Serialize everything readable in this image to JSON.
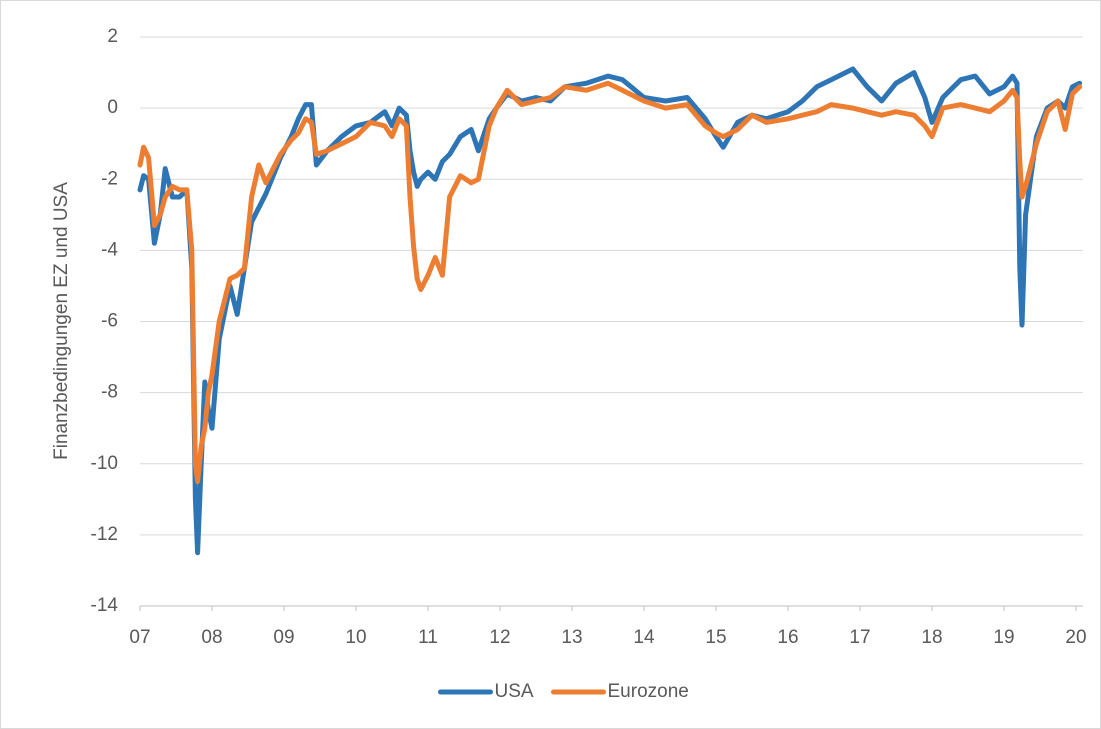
{
  "chart_data": {
    "type": "line",
    "y_label": "Finanzbedingungen  EZ und USA",
    "legend": "bottom",
    "grid": true,
    "xlim": [
      7,
      20.1
    ],
    "xticks": [
      {
        "value": 7,
        "label": "07"
      },
      {
        "value": 8,
        "label": "08"
      },
      {
        "value": 9,
        "label": "09"
      },
      10,
      11,
      12,
      13,
      14,
      15,
      16,
      17,
      18,
      19,
      20
    ],
    "ylim": [
      -14,
      2
    ],
    "yticks": [
      2,
      0,
      -2,
      -4,
      -6,
      -8,
      -10,
      -12,
      -14
    ],
    "x": [
      7.0,
      7.05,
      7.12,
      7.2,
      7.28,
      7.35,
      7.45,
      7.55,
      7.65,
      7.72,
      7.77,
      7.8,
      7.85,
      7.9,
      7.95,
      8.0,
      8.1,
      8.25,
      8.35,
      8.45,
      8.55,
      8.65,
      8.75,
      8.95,
      9.1,
      9.2,
      9.3,
      9.38,
      9.45,
      9.6,
      9.8,
      10.0,
      10.2,
      10.4,
      10.5,
      10.6,
      10.7,
      10.75,
      10.8,
      10.85,
      10.9,
      11.0,
      11.1,
      11.2,
      11.3,
      11.45,
      11.6,
      11.7,
      11.85,
      11.95,
      12.1,
      12.3,
      12.5,
      12.7,
      12.9,
      13.2,
      13.5,
      13.7,
      14.0,
      14.3,
      14.6,
      14.85,
      15.0,
      15.1,
      15.3,
      15.5,
      15.7,
      16.0,
      16.2,
      16.4,
      16.6,
      16.9,
      17.1,
      17.3,
      17.5,
      17.75,
      17.9,
      18.0,
      18.15,
      18.4,
      18.6,
      18.8,
      19.0,
      19.12,
      19.18,
      19.22,
      19.25,
      19.3,
      19.45,
      19.6,
      19.75,
      19.85,
      19.95,
      20.05
    ],
    "series": [
      {
        "name": "USA",
        "color": "#2e75b6",
        "values": [
          -2.3,
          -1.9,
          -2.0,
          -3.8,
          -3.0,
          -1.7,
          -2.5,
          -2.5,
          -2.3,
          -4.5,
          -11.0,
          -12.5,
          -10.0,
          -7.7,
          -8.5,
          -9.0,
          -6.5,
          -5.0,
          -5.8,
          -4.5,
          -3.2,
          -2.8,
          -2.4,
          -1.4,
          -0.8,
          -0.3,
          0.1,
          0.1,
          -1.6,
          -1.2,
          -0.8,
          -0.5,
          -0.4,
          -0.1,
          -0.5,
          0.0,
          -0.2,
          -1.2,
          -1.8,
          -2.2,
          -2.0,
          -1.8,
          -2.0,
          -1.5,
          -1.3,
          -0.8,
          -0.6,
          -1.2,
          -0.3,
          0.0,
          0.4,
          0.2,
          0.3,
          0.2,
          0.6,
          0.7,
          0.9,
          0.8,
          0.3,
          0.2,
          0.3,
          -0.3,
          -0.8,
          -1.1,
          -0.4,
          -0.2,
          -0.3,
          -0.1,
          0.2,
          0.6,
          0.8,
          1.1,
          0.6,
          0.2,
          0.7,
          1.0,
          0.3,
          -0.4,
          0.3,
          0.8,
          0.9,
          0.4,
          0.6,
          0.9,
          0.7,
          -4.5,
          -6.1,
          -3.0,
          -0.8,
          0.0,
          0.2,
          0.0,
          0.6,
          0.7
        ]
      },
      {
        "name": "Eurozone",
        "color": "#ed7d31",
        "values": [
          -1.6,
          -1.1,
          -1.4,
          -3.3,
          -3.0,
          -2.5,
          -2.2,
          -2.3,
          -2.3,
          -4.0,
          -10.0,
          -10.5,
          -9.5,
          -9.0,
          -8.0,
          -7.5,
          -6.0,
          -4.8,
          -4.7,
          -4.5,
          -2.5,
          -1.6,
          -2.1,
          -1.3,
          -0.9,
          -0.7,
          -0.3,
          -0.4,
          -1.3,
          -1.2,
          -1.0,
          -0.8,
          -0.4,
          -0.5,
          -0.8,
          -0.3,
          -0.5,
          -2.5,
          -3.9,
          -4.8,
          -5.1,
          -4.7,
          -4.2,
          -4.7,
          -2.5,
          -1.9,
          -2.1,
          -2.0,
          -0.5,
          0.0,
          0.5,
          0.1,
          0.2,
          0.3,
          0.6,
          0.5,
          0.7,
          0.5,
          0.2,
          0.0,
          0.1,
          -0.5,
          -0.7,
          -0.8,
          -0.6,
          -0.2,
          -0.4,
          -0.3,
          -0.2,
          -0.1,
          0.1,
          0.0,
          -0.1,
          -0.2,
          -0.1,
          -0.2,
          -0.5,
          -0.8,
          0.0,
          0.1,
          0.0,
          -0.1,
          0.2,
          0.5,
          0.3,
          -1.5,
          -2.5,
          -2.2,
          -1.0,
          -0.1,
          0.2,
          -0.6,
          0.4,
          0.6
        ]
      }
    ]
  }
}
